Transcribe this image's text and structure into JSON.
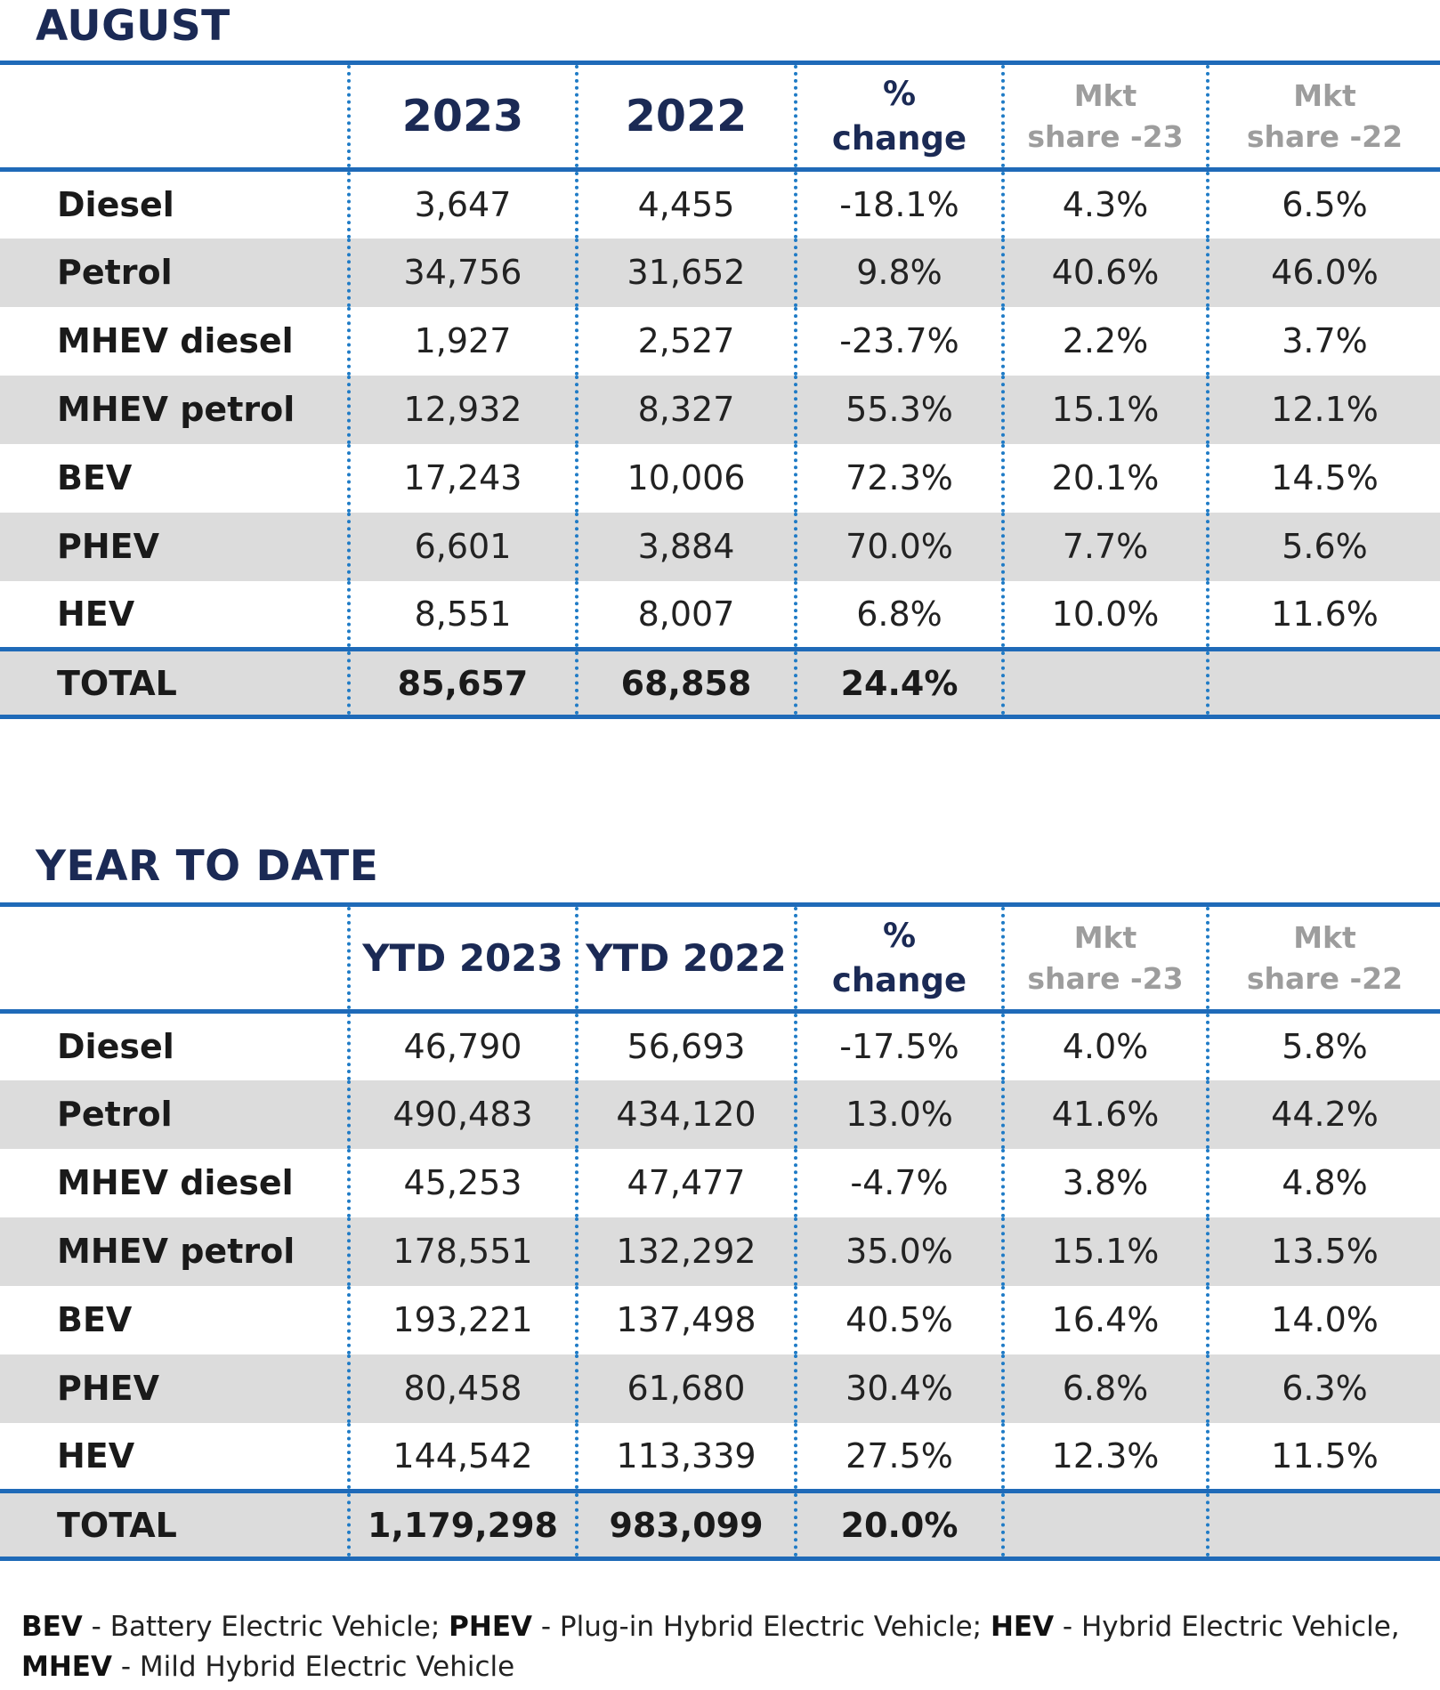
{
  "august": {
    "title": "AUGUST",
    "headers": {
      "col1": "2023",
      "col2": "2022",
      "pct_line1": "%",
      "pct_line2": "change",
      "mkt23_line1": "Mkt",
      "mkt23_line2": "share -23",
      "mkt22_line1": "Mkt",
      "mkt22_line2": "share -22"
    },
    "rows": [
      {
        "label": "Diesel",
        "v2023": "3,647",
        "v2022": "4,455",
        "change": "-18.1%",
        "mkt23": "4.3%",
        "mkt22": "6.5%"
      },
      {
        "label": "Petrol",
        "v2023": "34,756",
        "v2022": "31,652",
        "change": "9.8%",
        "mkt23": "40.6%",
        "mkt22": "46.0%"
      },
      {
        "label": "MHEV diesel",
        "v2023": "1,927",
        "v2022": "2,527",
        "change": "-23.7%",
        "mkt23": "2.2%",
        "mkt22": "3.7%"
      },
      {
        "label": "MHEV petrol",
        "v2023": "12,932",
        "v2022": "8,327",
        "change": "55.3%",
        "mkt23": "15.1%",
        "mkt22": "12.1%"
      },
      {
        "label": "BEV",
        "v2023": "17,243",
        "v2022": "10,006",
        "change": "72.3%",
        "mkt23": "20.1%",
        "mkt22": "14.5%"
      },
      {
        "label": "PHEV",
        "v2023": "6,601",
        "v2022": "3,884",
        "change": "70.0%",
        "mkt23": "7.7%",
        "mkt22": "5.6%"
      },
      {
        "label": "HEV",
        "v2023": "8,551",
        "v2022": "8,007",
        "change": "6.8%",
        "mkt23": "10.0%",
        "mkt22": "11.6%"
      }
    ],
    "total": {
      "label": "TOTAL",
      "v2023": "85,657",
      "v2022": "68,858",
      "change": "24.4%"
    }
  },
  "ytd": {
    "title": "YEAR TO DATE",
    "headers": {
      "col1": "YTD 2023",
      "col2": "YTD 2022",
      "pct_line1": "%",
      "pct_line2": "change",
      "mkt23_line1": "Mkt",
      "mkt23_line2": "share -23",
      "mkt22_line1": "Mkt",
      "mkt22_line2": "share -22"
    },
    "rows": [
      {
        "label": "Diesel",
        "v2023": "46,790",
        "v2022": "56,693",
        "change": "-17.5%",
        "mkt23": "4.0%",
        "mkt22": "5.8%"
      },
      {
        "label": "Petrol",
        "v2023": "490,483",
        "v2022": "434,120",
        "change": "13.0%",
        "mkt23": "41.6%",
        "mkt22": "44.2%"
      },
      {
        "label": "MHEV diesel",
        "v2023": "45,253",
        "v2022": "47,477",
        "change": "-4.7%",
        "mkt23": "3.8%",
        "mkt22": "4.8%"
      },
      {
        "label": "MHEV petrol",
        "v2023": "178,551",
        "v2022": "132,292",
        "change": "35.0%",
        "mkt23": "15.1%",
        "mkt22": "13.5%"
      },
      {
        "label": "BEV",
        "v2023": "193,221",
        "v2022": "137,498",
        "change": "40.5%",
        "mkt23": "16.4%",
        "mkt22": "14.0%"
      },
      {
        "label": "PHEV",
        "v2023": "80,458",
        "v2022": "61,680",
        "change": "30.4%",
        "mkt23": "6.8%",
        "mkt22": "6.3%"
      },
      {
        "label": "HEV",
        "v2023": "144,542",
        "v2022": "113,339",
        "change": "27.5%",
        "mkt23": "12.3%",
        "mkt22": "11.5%"
      }
    ],
    "total": {
      "label": "TOTAL",
      "v2023": "1,179,298",
      "v2022": "983,099",
      "change": "20.0%"
    }
  },
  "footnote": {
    "bev_abbr": "BEV",
    "bev_text": " - Battery Electric Vehicle; ",
    "phev_abbr": "PHEV",
    "phev_text": " - Plug-in Hybrid Electric Vehicle; ",
    "hev_abbr": "HEV",
    "hev_text": " - Hybrid Electric Vehicle,",
    "mhev_abbr": "MHEV",
    "mhev_text": " - Mild Hybrid Electric Vehicle"
  },
  "colors": {
    "title_navy": "#1b2a55",
    "rule_blue": "#1f6ab8",
    "dotted_blue": "#1f7bc6",
    "stripe_gray": "#dcdcdc",
    "mkt_header_gray": "#9d9d9d"
  }
}
